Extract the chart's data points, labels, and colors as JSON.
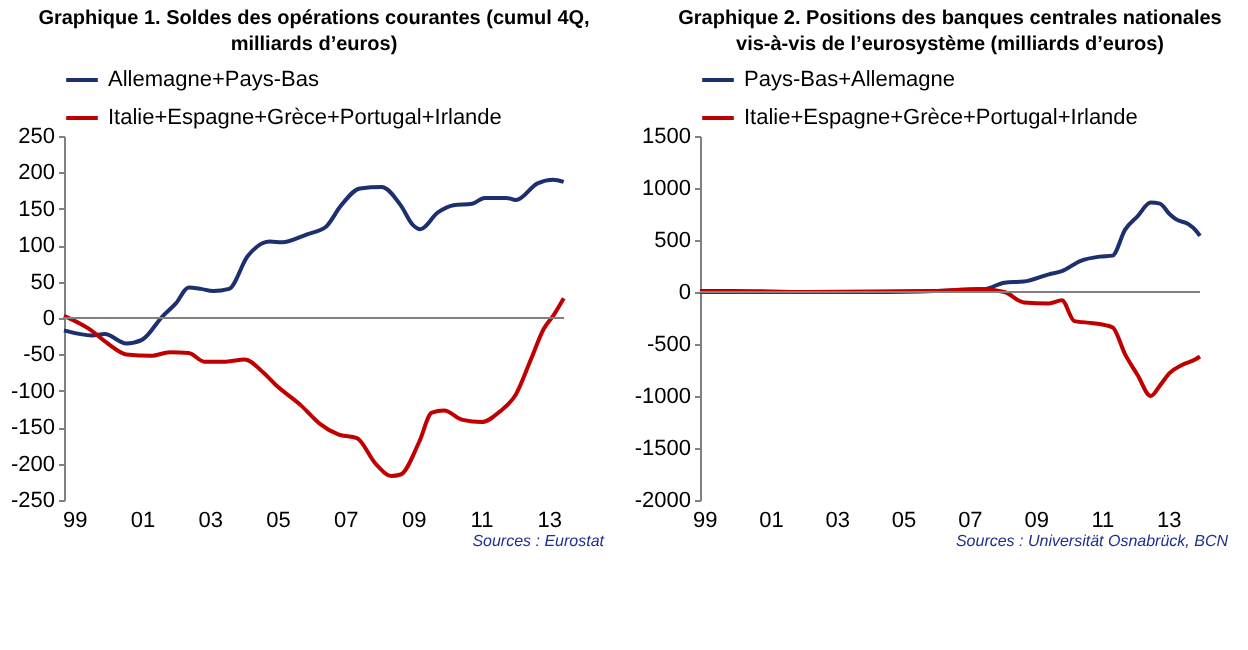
{
  "chart_data": [
    {
      "type": "line",
      "title": "Graphique 1. Soldes des opérations courantes (cumul 4Q, milliards d’euros)",
      "annotations": [
        "Sources : Eurostat"
      ],
      "xlim": [
        1998.7,
        2013.45
      ],
      "xticks": [
        {
          "value": 1999,
          "label": "99"
        },
        {
          "value": 2001,
          "label": "01"
        },
        {
          "value": 2003,
          "label": "03"
        },
        {
          "value": 2005,
          "label": "05"
        },
        {
          "value": 2007,
          "label": "07"
        },
        {
          "value": 2009,
          "label": "09"
        },
        {
          "value": 2011,
          "label": "11"
        },
        {
          "value": 2013,
          "label": "13"
        }
      ],
      "ylim": [
        -250,
        250
      ],
      "yticks": [
        -250,
        -200,
        -150,
        -100,
        -50,
        0,
        50,
        100,
        150,
        200,
        250
      ],
      "grid": false,
      "legend": "top left",
      "line_style": "solid",
      "marker": "none",
      "ref_lines": [
        {
          "axis": "y",
          "value": 0,
          "color": "#808080"
        }
      ],
      "series": [
        {
          "name": "Allemagne+Pays-Bas",
          "color": "#1c2f6e",
          "x": [
            1998.7,
            1999.53,
            1999.9,
            2000.54,
            2001.0,
            2001.6,
            2002.0,
            2002.38,
            2002.74,
            2003.1,
            2003.57,
            2004.12,
            2004.77,
            2005.13,
            2005.87,
            2006.42,
            2006.88,
            2007.43,
            2008.07,
            2008.63,
            2008.99,
            2009.21,
            2009.73,
            2010.19,
            2010.74,
            2011.11,
            2011.75,
            2012.03,
            2012.67,
            2013.13,
            2013.44
          ],
          "values": [
            -17,
            -24,
            -22,
            -35,
            -30,
            2,
            20,
            42,
            40,
            37,
            40,
            85,
            105,
            104,
            115,
            125,
            155,
            178,
            180,
            155,
            128,
            122,
            145,
            155,
            157,
            165,
            165,
            162,
            185,
            190,
            187
          ]
        },
        {
          "name": "Italie+Espagne+Grèce+Portugal+Irlande",
          "color": "#c00000",
          "x": [
            1998.7,
            1999.44,
            1999.99,
            2000.54,
            2001.27,
            2001.83,
            2002.38,
            2002.84,
            2003.48,
            2004.03,
            2004.58,
            2004.95,
            2005.69,
            2006.24,
            2006.79,
            2007.34,
            2007.89,
            2008.35,
            2008.63,
            2009.18,
            2009.55,
            2009.91,
            2010.46,
            2011.02,
            2011.57,
            2012.03,
            2012.49,
            2012.85,
            2013.13,
            2013.44
          ],
          "values": [
            3,
            -15,
            -35,
            -50,
            -52,
            -47,
            -48,
            -60,
            -60,
            -57,
            -75,
            -92,
            -120,
            -145,
            -160,
            -165,
            -200,
            -217,
            -215,
            -170,
            -130,
            -127,
            -140,
            -143,
            -128,
            -105,
            -55,
            -15,
            3,
            27
          ]
        }
      ]
    },
    {
      "type": "line",
      "title": "Graphique 2. Positions des banques centrales nationales vis-à-vis de l’eurosystème (milliards d’euros)",
      "annotations": [
        "Sources : Universität Osnabrück, BCN"
      ],
      "xlim": [
        1998.87,
        2013.96
      ],
      "xticks": [
        {
          "value": 1999,
          "label": "99"
        },
        {
          "value": 2001,
          "label": "01"
        },
        {
          "value": 2003,
          "label": "03"
        },
        {
          "value": 2005,
          "label": "05"
        },
        {
          "value": 2007,
          "label": "07"
        },
        {
          "value": 2009,
          "label": "09"
        },
        {
          "value": 2011,
          "label": "11"
        },
        {
          "value": 2013,
          "label": "13"
        }
      ],
      "ylim": [
        -2000,
        1500
      ],
      "yticks": [
        -2000,
        -1500,
        -1000,
        -500,
        0,
        500,
        1000,
        1500
      ],
      "grid": false,
      "legend": "top left",
      "line_style": "solid",
      "marker": "none",
      "ref_lines": [
        {
          "axis": "y",
          "value": 0,
          "color": "#808080"
        }
      ],
      "series": [
        {
          "name": "Pays-Bas+Allemagne",
          "color": "#1c2f6e",
          "x": [
            1998.87,
            1999.82,
            2002.12,
            2004.04,
            2005.95,
            2006.82,
            2007.49,
            2008.06,
            2008.64,
            2009.4,
            2009.79,
            2010.36,
            2010.93,
            2011.32,
            2011.7,
            2012.08,
            2012.47,
            2012.75,
            2013.04,
            2013.23,
            2013.62,
            2013.81,
            2013.96
          ],
          "values": [
            10,
            10,
            0,
            0,
            10,
            20,
            30,
            90,
            100,
            170,
            200,
            300,
            340,
            350,
            600,
            730,
            860,
            850,
            750,
            700,
            650,
            600,
            540
          ]
        },
        {
          "name": "Italie+Espagne+Grèce+Portugal+Irlande",
          "color": "#c00000",
          "x": [
            1998.87,
            2002.12,
            2005.95,
            2007.3,
            2008.06,
            2008.64,
            2009.4,
            2009.79,
            2010.17,
            2010.74,
            2011.32,
            2011.7,
            2012.08,
            2012.47,
            2012.75,
            2013.04,
            2013.43,
            2013.81,
            2013.96
          ],
          "values": [
            0,
            0,
            10,
            30,
            0,
            -100,
            -110,
            -80,
            -280,
            -300,
            -340,
            -600,
            -800,
            -1000,
            -900,
            -780,
            -700,
            -650,
            -620
          ]
        }
      ]
    }
  ]
}
